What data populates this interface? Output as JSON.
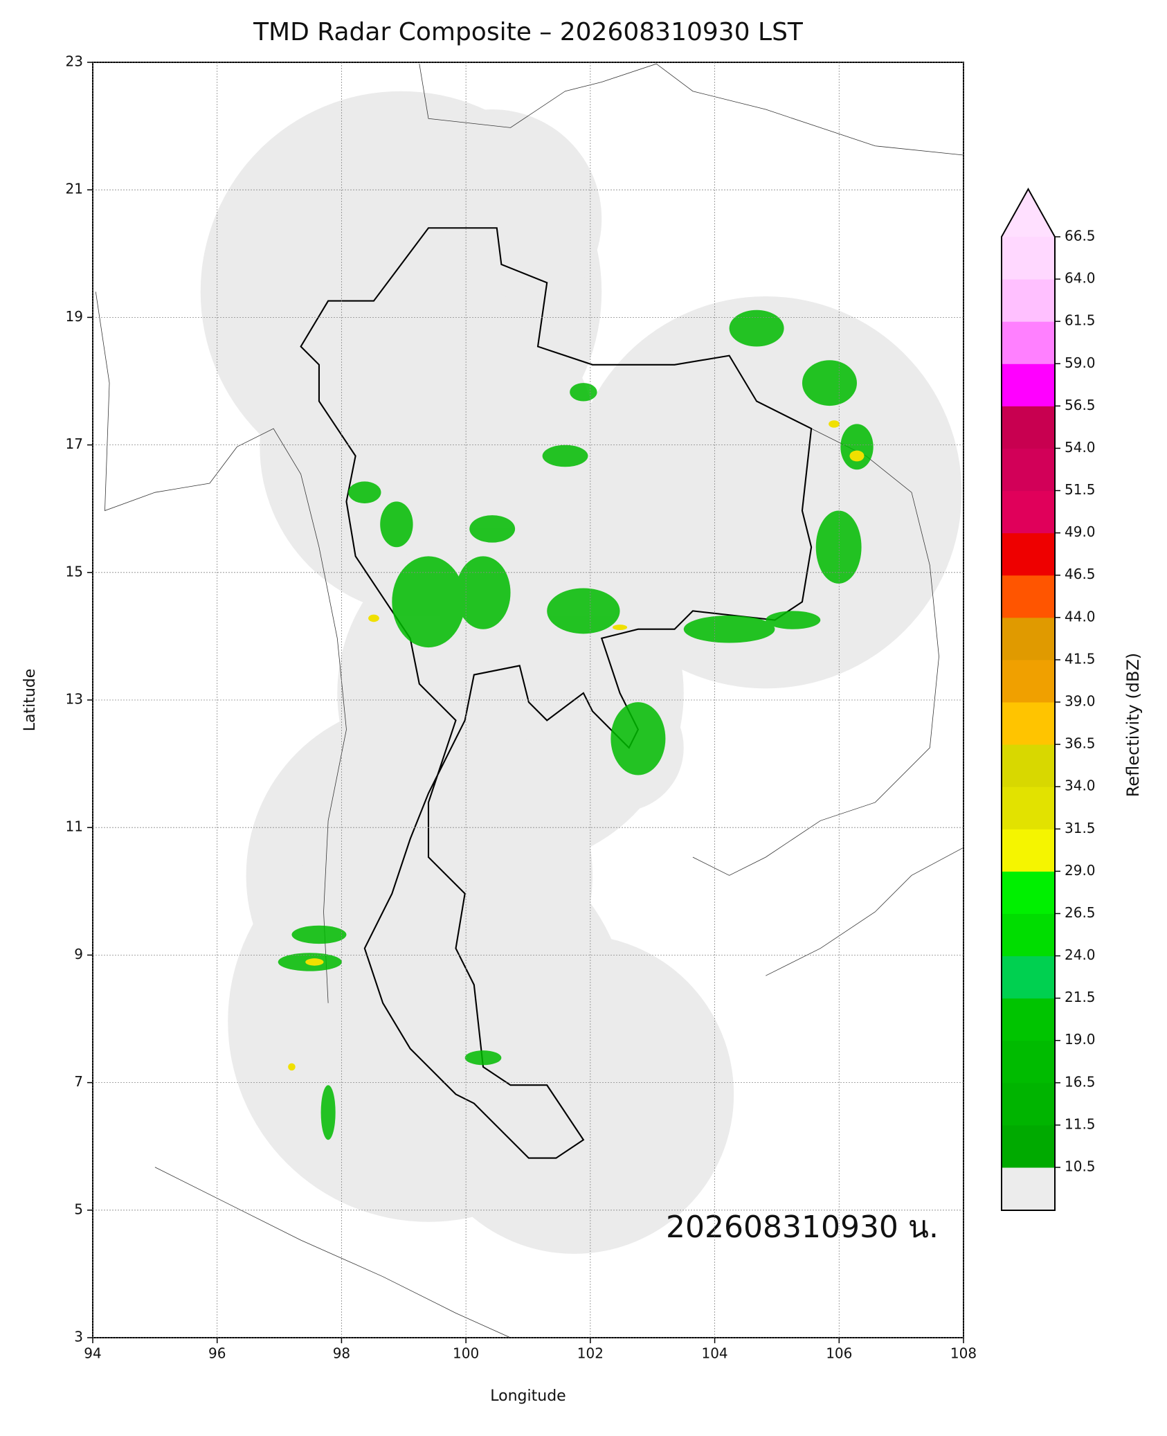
{
  "chart_data": {
    "type": "radar_map",
    "title": "TMD Radar Composite – 202608310930 LST",
    "x_label": "Longitude",
    "y_label": "Latitude",
    "xlim": [
      94,
      108
    ],
    "ylim": [
      3,
      23
    ],
    "xticks": [
      94,
      96,
      98,
      100,
      102,
      104,
      106,
      108
    ],
    "yticks": [
      3,
      5,
      7,
      9,
      11,
      13,
      15,
      17,
      19,
      21,
      23
    ],
    "grid": true,
    "annotation": "202608310930 น.",
    "colorbar": {
      "label": "Reflectivity (dBZ)",
      "ticks": [
        10.5,
        11.5,
        16.5,
        {
          "value": 19,
          "label": "19.0"
        },
        21.5,
        {
          "value": 24,
          "label": "24.0"
        },
        26.5,
        {
          "value": 29,
          "label": "29.0"
        },
        31.5,
        {
          "value": 34,
          "label": "34.0"
        },
        36.5,
        {
          "value": 39,
          "label": "39.0"
        },
        41.5,
        {
          "value": 44,
          "label": "44.0"
        },
        46.5,
        {
          "value": 49,
          "label": "49.0"
        },
        51.5,
        {
          "value": 54,
          "label": "54.0"
        },
        56.5,
        {
          "value": 59,
          "label": "59.0"
        },
        61.5,
        {
          "value": 64,
          "label": "64.0"
        },
        66.5
      ],
      "colors": [
        "#00aa00",
        "#00b400",
        "#00bb00",
        "#00c400",
        "#00d050",
        "#00dd00",
        "#00f000",
        "#f5f500",
        "#e2e200",
        "#d8d800",
        "#ffc400",
        "#f0a000",
        "#e09a00",
        "#ff5500",
        "#ee0000",
        "#e0005a",
        "#d20058",
        "#c80050",
        "#ff00ff",
        "#ff80ff",
        "#ffc0ff",
        "#ffd8ff"
      ],
      "under_color": "#ececec",
      "over_color": "#ffe0ff"
    }
  }
}
